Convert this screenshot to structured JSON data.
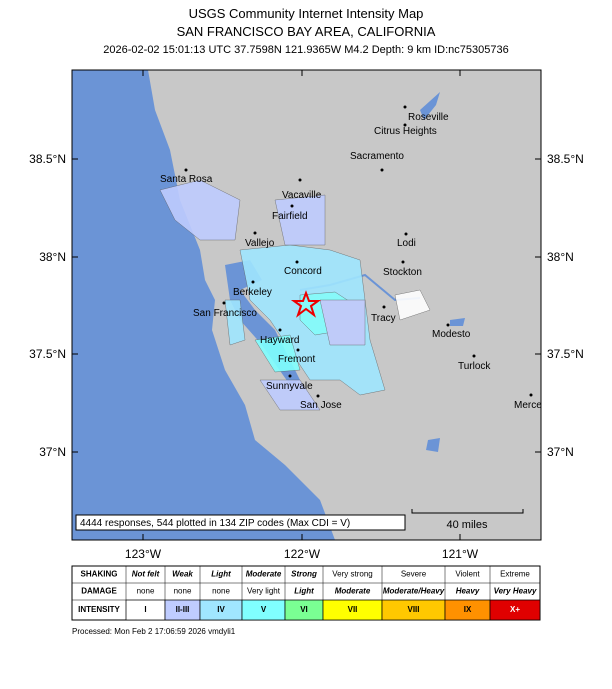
{
  "header": {
    "title": "USGS Community Internet Intensity Map",
    "subtitle": "SAN FRANCISCO BAY AREA, CALIFORNIA",
    "info": "2026-02-02 15:01:13 UTC 37.7598N 121.9365W M4.2 Depth: 9 km ID:nc75305736"
  },
  "map": {
    "lat_labels": [
      "38.5°N",
      "38°N",
      "37.5°N",
      "37°N"
    ],
    "lon_labels": [
      "123°W",
      "122°W",
      "121°W"
    ],
    "cities": [
      "Roseville",
      "Citrus Heights",
      "Sacramento",
      "Santa Rosa",
      "Vacaville",
      "Fairfield",
      "Vallejo",
      "Lodi",
      "Concord",
      "Stockton",
      "Berkeley",
      "San Francisco",
      "Tracy",
      "Modesto",
      "Hayward",
      "Fremont",
      "Turlock",
      "Sunnyvale",
      "San Jose",
      "Merced"
    ],
    "summary": "4444 responses, 544 plotted in 134 ZIP codes (Max CDI = V)",
    "scale_label": "40 miles"
  },
  "legend": {
    "row_headers": [
      "SHAKING",
      "DAMAGE",
      "INTENSITY"
    ],
    "shaking": [
      "Not felt",
      "Weak",
      "Light",
      "Moderate",
      "Strong",
      "Very strong",
      "Severe",
      "Violent",
      "Extreme"
    ],
    "damage": [
      "none",
      "none",
      "none",
      "Very light",
      "Light",
      "Moderate",
      "Moderate/Heavy",
      "Heavy",
      "Very Heavy"
    ],
    "intensity": [
      "I",
      "II-III",
      "IV",
      "V",
      "VI",
      "VII",
      "VIII",
      "IX",
      "X+"
    ]
  },
  "footer": {
    "processed": "Processed: Mon Feb  2 17:06:59 2026 vmdyli1"
  }
}
